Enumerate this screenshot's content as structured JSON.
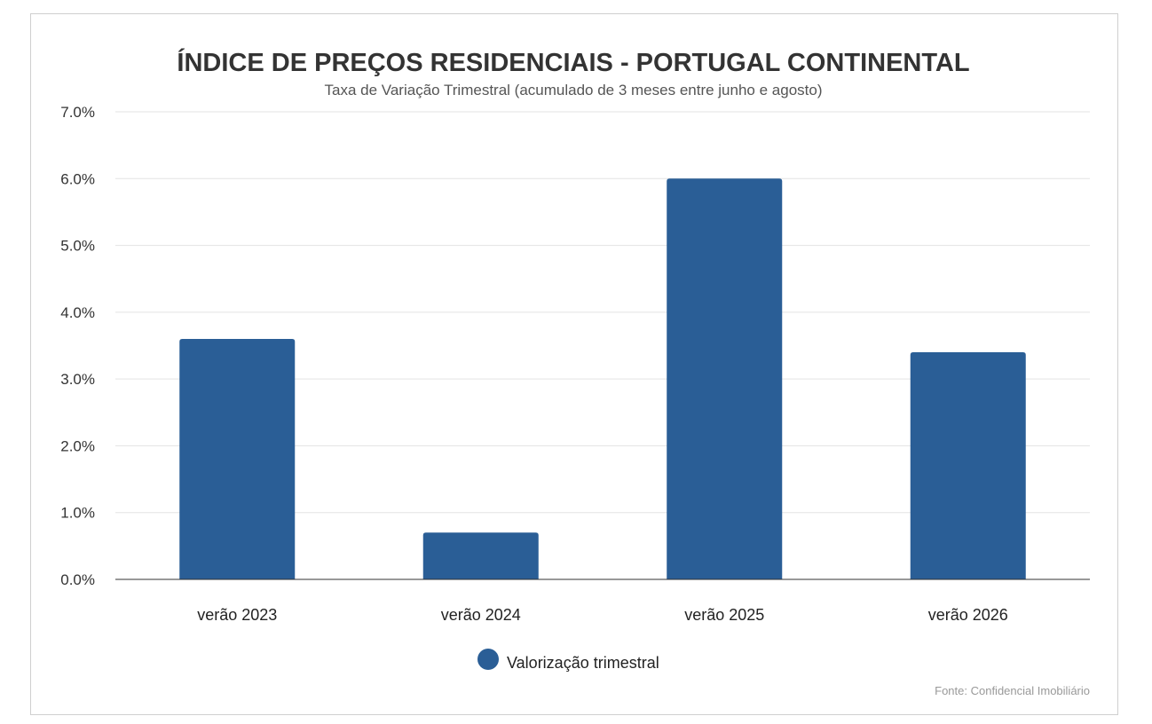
{
  "chart_data": {
    "type": "bar",
    "title": "ÍNDICE DE PREÇOS RESIDENCIAIS - PORTUGAL CONTINENTAL",
    "subtitle": "Taxa de Variação Trimestral (acumulado de 3 meses entre junho e agosto)",
    "categories": [
      "verão 2023",
      "verão 2024",
      "verão 2025",
      "verão 2026"
    ],
    "series": [
      {
        "name": "Valorização trimestral",
        "values": [
          3.6,
          0.7,
          6.0,
          3.4
        ],
        "color": "#2a5e96"
      }
    ],
    "ylim": [
      0,
      7
    ],
    "yticks": [
      "0.0%",
      "1.0%",
      "2.0%",
      "3.0%",
      "4.0%",
      "5.0%",
      "6.0%",
      "7.0%"
    ],
    "grid": true,
    "legend": "bottom-center",
    "source": "Fonte: Confidencial Imobiliário"
  }
}
